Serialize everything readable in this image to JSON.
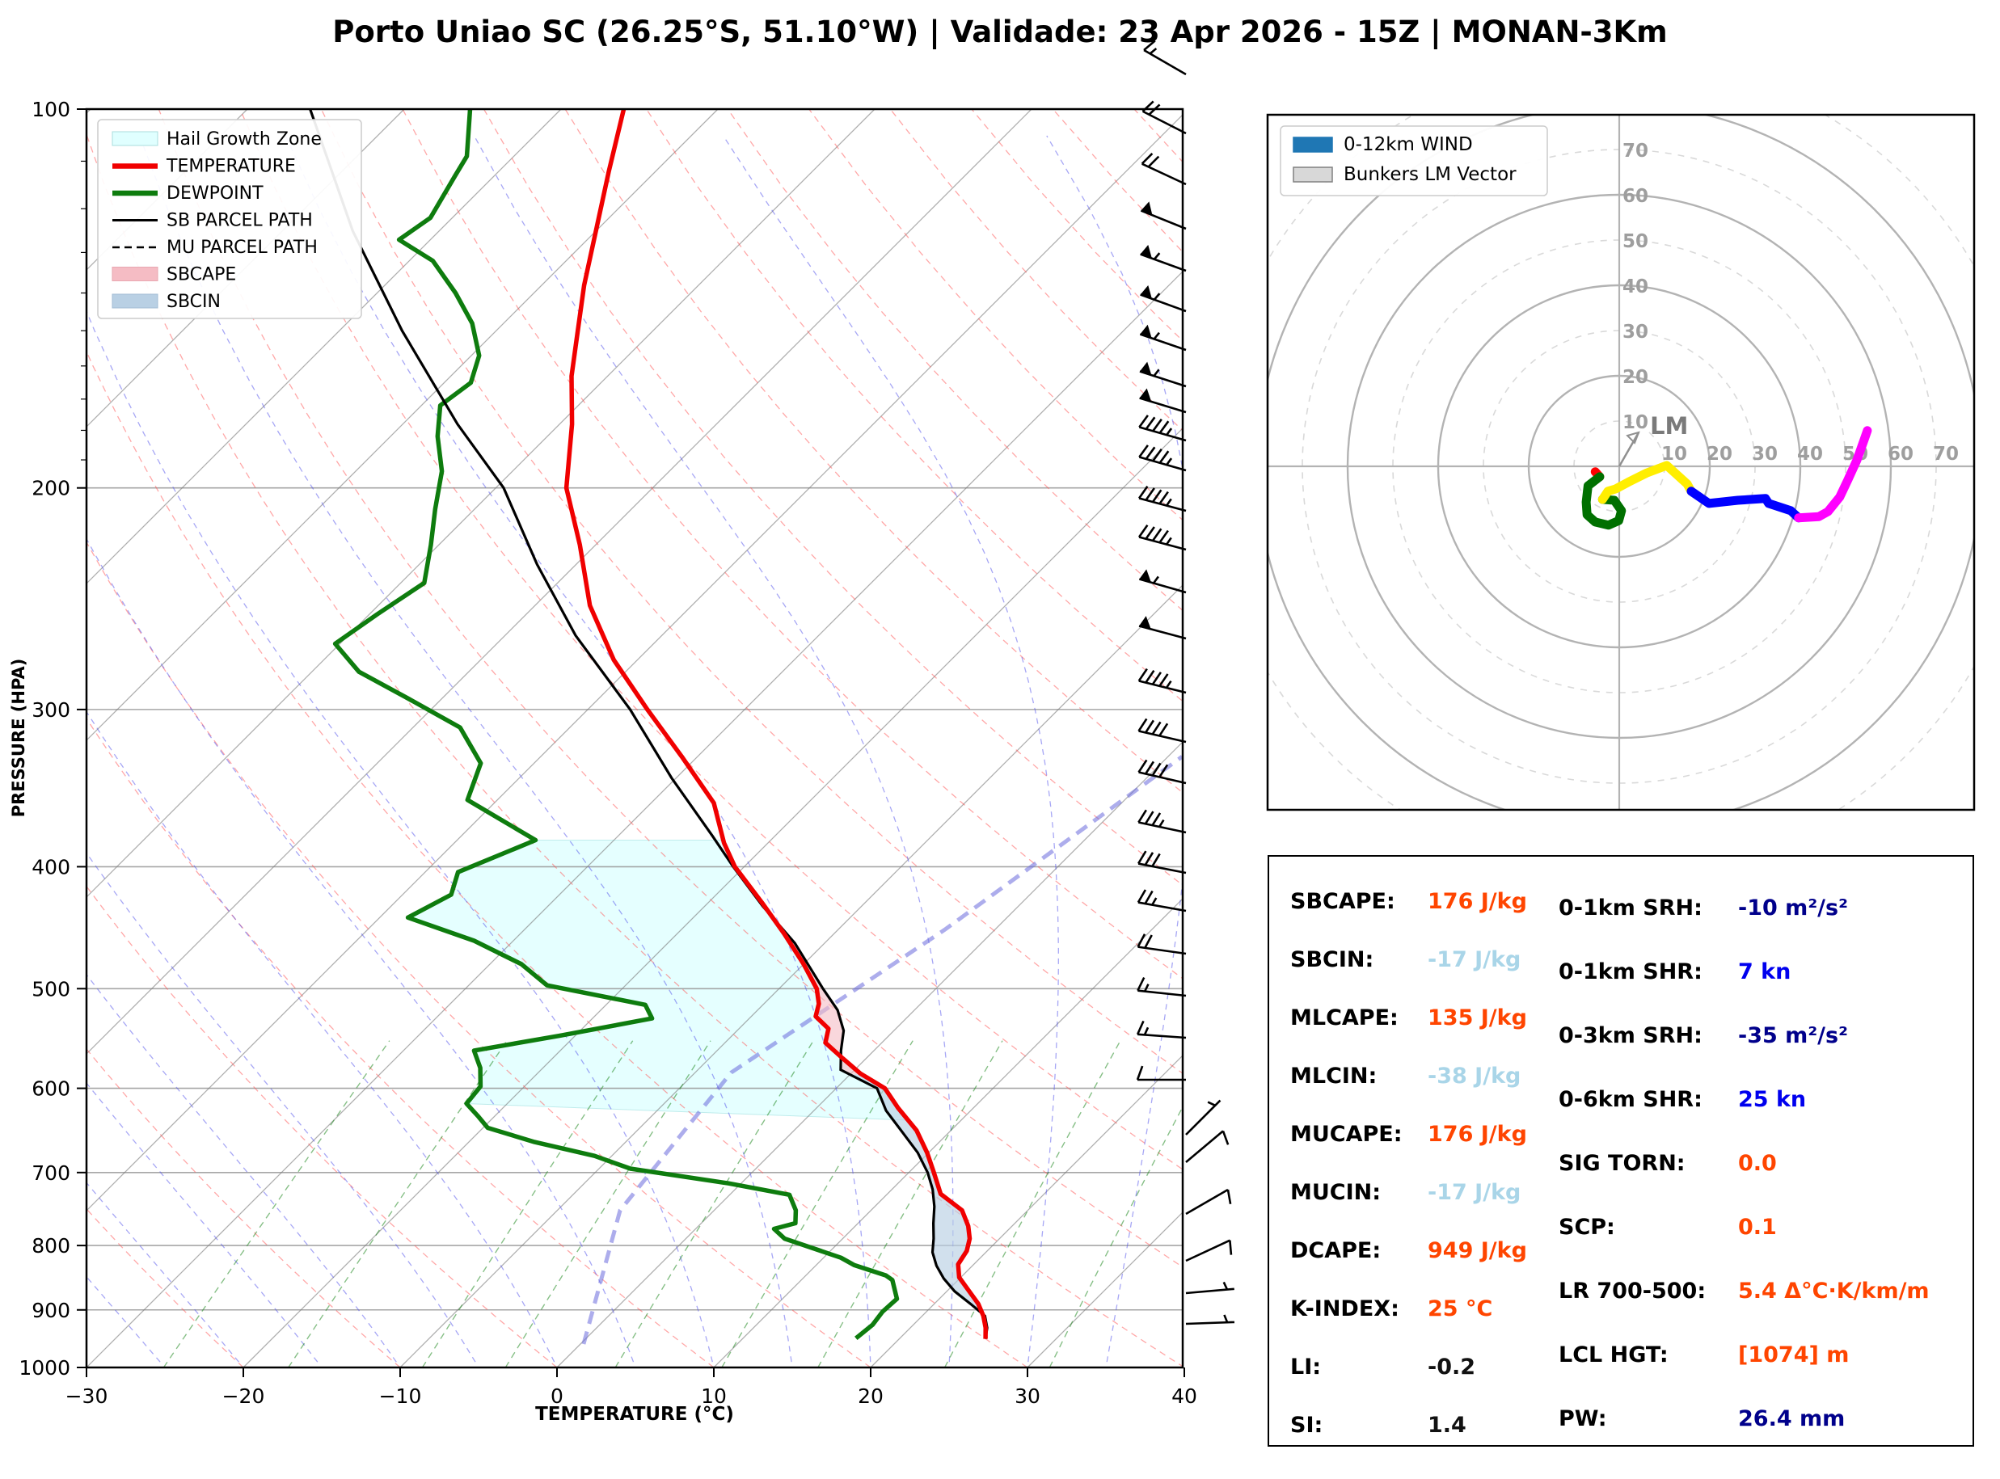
{
  "title": "Porto Uniao SC (26.25°S, 51.10°W) | Validade: 23 Apr 2026 - 15Z | MONAN-3Km",
  "skewt": {
    "xlabel": "TEMPERATURE (°C)",
    "ylabel": "PRESSURE (HPA)",
    "x_ticks": [
      -30,
      -20,
      -10,
      0,
      10,
      20,
      30,
      40
    ],
    "p_ticks": [
      100,
      200,
      300,
      400,
      500,
      600,
      700,
      800,
      900,
      1000
    ],
    "legend": [
      {
        "label": "Hail Growth Zone",
        "type": "patch",
        "color": "#e0ffff",
        "edge": "#aadddd"
      },
      {
        "label": "TEMPERATURE",
        "type": "line",
        "color": "#f00000"
      },
      {
        "label": "DEWPOINT",
        "type": "line",
        "color": "#0e7c0e"
      },
      {
        "label": "SB PARCEL PATH",
        "type": "line2",
        "color": "#000000"
      },
      {
        "label": "MU PARCEL PATH",
        "type": "dashed",
        "color": "#000000"
      },
      {
        "label": "SBCAPE",
        "type": "patch",
        "color": "#f5bcc4",
        "edge": "#e8a7b0"
      },
      {
        "label": "SBCIN",
        "type": "patch",
        "color": "#b9d0e4",
        "edge": "#a3bdd4"
      }
    ]
  },
  "hodograph": {
    "legend": [
      {
        "label": "0-12km WIND",
        "type": "patch",
        "color": "#1f77b4",
        "edge": "#1f77b4"
      },
      {
        "label": "Bunkers LM Vector",
        "type": "patch",
        "color": "#d8d8d8",
        "edge": "#808080"
      }
    ],
    "ring_labels": [
      10,
      20,
      30,
      40,
      50,
      60,
      70
    ],
    "lm_label": "LM"
  },
  "stats": {
    "left": [
      {
        "label": "SBCAPE:",
        "value": "176 J/kg",
        "color": "#ff4500"
      },
      {
        "label": "SBCIN:",
        "value": "-17 J/kg",
        "color": "#a9d5e8"
      },
      {
        "label": "MLCAPE:",
        "value": "135 J/kg",
        "color": "#ff4500"
      },
      {
        "label": "MLCIN:",
        "value": "-38 J/kg",
        "color": "#a9d5e8"
      },
      {
        "label": "MUCAPE:",
        "value": "176 J/kg",
        "color": "#ff4500"
      },
      {
        "label": "MUCIN:",
        "value": "-17 J/kg",
        "color": "#a9d5e8"
      },
      {
        "label": "DCAPE:",
        "value": "949 J/kg",
        "color": "#ff4500"
      },
      {
        "label": "K-INDEX:",
        "value": "25 °C",
        "color": "#ff4500"
      },
      {
        "label": "LI:",
        "value": "-0.2",
        "color": "#111111"
      },
      {
        "label": "SI:",
        "value": "1.4",
        "color": "#111111"
      }
    ],
    "right": [
      {
        "label": "0-1km SRH:",
        "value": "-10 m²/s²",
        "color": "#00008b"
      },
      {
        "label": "0-1km SHR:",
        "value": "7 kn",
        "color": "#0000ee"
      },
      {
        "label": "0-3km SRH:",
        "value": "-35 m²/s²",
        "color": "#00008b"
      },
      {
        "label": "0-6km SHR:",
        "value": "25 kn",
        "color": "#0000ee"
      },
      {
        "label": "SIG TORN:",
        "value": "0.0",
        "color": "#ff4500"
      },
      {
        "label": "SCP:",
        "value": "0.1",
        "color": "#ff4500"
      },
      {
        "label": "LR 700-500:",
        "value": "5.4 Δ°C·K/km/m",
        "color": "#ff4500"
      },
      {
        "label": "LCL HGT:",
        "value": "[1074] m",
        "color": "#ff4500"
      },
      {
        "label": "PW:",
        "value": "26.4 mm",
        "color": "#00008b"
      }
    ]
  },
  "chart_data": {
    "type": "skewt-sounding",
    "pressure_range_hpa": [
      100,
      1000
    ],
    "temperature_range_c": [
      -30,
      40
    ],
    "profiles": {
      "temperature": [
        [
          100,
          -76
        ],
        [
          112,
          -73
        ],
        [
          125,
          -70
        ],
        [
          138,
          -67.3
        ],
        [
          151,
          -64.6
        ],
        [
          163,
          -62.3
        ],
        [
          178,
          -59.2
        ],
        [
          200,
          -55.5
        ],
        [
          222,
          -51
        ],
        [
          248,
          -46.5
        ],
        [
          274,
          -41.5
        ],
        [
          300,
          -36.2
        ],
        [
          327,
          -31
        ],
        [
          356,
          -26
        ],
        [
          383,
          -22.8
        ],
        [
          400,
          -20.6
        ],
        [
          427,
          -16.6
        ],
        [
          452,
          -13.2
        ],
        [
          478,
          -10
        ],
        [
          500,
          -7.6
        ],
        [
          514,
          -6.5
        ],
        [
          526,
          -5.9
        ],
        [
          538,
          -4.3
        ],
        [
          552,
          -3.6
        ],
        [
          568,
          -1.5
        ],
        [
          584,
          0.6
        ],
        [
          600,
          3.1
        ],
        [
          622,
          5.2
        ],
        [
          648,
          7.8
        ],
        [
          675,
          9.9
        ],
        [
          700,
          11.6
        ],
        [
          728,
          13.4
        ],
        [
          750,
          15.8
        ],
        [
          772,
          17.2
        ],
        [
          790,
          18.1
        ],
        [
          808,
          18.7
        ],
        [
          828,
          19
        ],
        [
          848,
          19.9
        ],
        [
          868,
          21.3
        ],
        [
          890,
          22.8
        ],
        [
          910,
          23.9
        ],
        [
          930,
          24.8
        ],
        [
          949,
          25.5
        ]
      ],
      "dewpoint": [
        [
          100,
          -85.8
        ],
        [
          109,
          -83
        ],
        [
          113,
          -82.5
        ],
        [
          122,
          -81.4
        ],
        [
          127,
          -82
        ],
        [
          132,
          -78.5
        ],
        [
          140,
          -75
        ],
        [
          148,
          -72
        ],
        [
          157,
          -69.5
        ],
        [
          165,
          -68.3
        ],
        [
          172,
          -68.8
        ],
        [
          182,
          -67
        ],
        [
          194,
          -64.5
        ],
        [
          208,
          -62.5
        ],
        [
          222,
          -60.5
        ],
        [
          238,
          -58.5
        ],
        [
          252,
          -59.5
        ],
        [
          266,
          -60.3
        ],
        [
          280,
          -57
        ],
        [
          293,
          -52.5
        ],
        [
          310,
          -47
        ],
        [
          331,
          -43.4
        ],
        [
          354,
          -41.9
        ],
        [
          381,
          -35
        ],
        [
          404,
          -37.9
        ],
        [
          421,
          -36.9
        ],
        [
          439,
          -38.2
        ],
        [
          458,
          -32.5
        ],
        [
          478,
          -28
        ],
        [
          497,
          -25
        ],
        [
          515,
          -17.5
        ],
        [
          528,
          -16.2
        ],
        [
          545,
          -21
        ],
        [
          560,
          -25.5
        ],
        [
          578,
          -24
        ],
        [
          598,
          -22.8
        ],
        [
          617,
          -22.6
        ],
        [
          632,
          -21
        ],
        [
          645,
          -19.7
        ],
        [
          662,
          -15.8
        ],
        [
          679,
          -11.1
        ],
        [
          695,
          -8
        ],
        [
          714,
          -0.8
        ],
        [
          729,
          3.8
        ],
        [
          750,
          5.2
        ],
        [
          768,
          6
        ],
        [
          776,
          5
        ],
        [
          790,
          6.3
        ],
        [
          818,
          11.1
        ],
        [
          829,
          12.4
        ],
        [
          845,
          15.1
        ],
        [
          852,
          15.8
        ],
        [
          882,
          17.3
        ],
        [
          903,
          17.2
        ],
        [
          925,
          17.4
        ],
        [
          948,
          17.2
        ]
      ],
      "sb_parcel": [
        [
          100,
          -96
        ],
        [
          125,
          -85.5
        ],
        [
          150,
          -76
        ],
        [
          178,
          -66.5
        ],
        [
          200,
          -59.5
        ],
        [
          230,
          -52.5
        ],
        [
          262,
          -45.5
        ],
        [
          300,
          -37.3
        ],
        [
          340,
          -30.3
        ],
        [
          378,
          -24
        ],
        [
          400,
          -20.7
        ],
        [
          430,
          -16.3
        ],
        [
          460,
          -11.9
        ],
        [
          480,
          -9.5
        ],
        [
          500,
          -7.2
        ],
        [
          520,
          -4.9
        ],
        [
          540,
          -3.2
        ],
        [
          560,
          -2.1
        ],
        [
          580,
          -0.9
        ],
        [
          600,
          2.6
        ],
        [
          625,
          4.6
        ],
        [
          650,
          7
        ],
        [
          675,
          9.3
        ],
        [
          700,
          11.2
        ],
        [
          722,
          12.6
        ],
        [
          745,
          13.8
        ],
        [
          768,
          14.8
        ],
        [
          790,
          15.8
        ],
        [
          810,
          16.6
        ],
        [
          830,
          17.7
        ],
        [
          850,
          19
        ],
        [
          870,
          20.5
        ],
        [
          890,
          22.3
        ],
        [
          910,
          24
        ],
        [
          930,
          24.9
        ],
        [
          949,
          25.5
        ]
      ],
      "mu_parcel_same_as_sb": true
    },
    "special_line": [
      [
        958,
        0.2
      ],
      [
        750,
        -6.0
      ],
      [
        583,
        -7.7
      ],
      [
        449,
        -3.2
      ],
      [
        327,
        0.9
      ]
    ],
    "zones": {
      "hail_growth": {
        "p_top": 381,
        "p_bottom": 636
      },
      "sbcape": {
        "p_top": 393,
        "p_bottom": 585
      },
      "sbcin": {
        "p_top": 585,
        "p_bottom": 949
      }
    },
    "wind_barbs": [
      [
        92,
        15,
        300,
        0
      ],
      [
        165,
        20,
        297,
        0
      ],
      [
        228,
        20,
        295,
        0
      ],
      [
        283,
        50,
        292,
        0
      ],
      [
        335,
        55,
        290,
        0
      ],
      [
        385,
        55,
        290,
        0
      ],
      [
        433,
        55,
        289,
        0
      ],
      [
        478,
        55,
        288,
        0
      ],
      [
        510,
        50,
        287,
        0
      ],
      [
        545,
        45,
        286,
        0
      ],
      [
        582,
        45,
        286,
        0
      ],
      [
        632,
        45,
        285,
        0
      ],
      [
        680,
        45,
        285,
        0
      ],
      [
        733,
        55,
        286,
        0
      ],
      [
        790,
        50,
        285,
        0
      ],
      [
        857,
        45,
        284,
        0
      ],
      [
        918,
        40,
        283,
        0
      ],
      [
        969,
        40,
        283,
        0
      ],
      [
        1030,
        35,
        282,
        0
      ],
      [
        1080,
        30,
        281,
        0
      ],
      [
        1127,
        25,
        280,
        0
      ],
      [
        1180,
        20,
        278,
        0
      ],
      [
        1232,
        15,
        276,
        0
      ],
      [
        1284,
        15,
        274,
        0
      ],
      [
        1336,
        10,
        270,
        0
      ],
      [
        1404,
        5,
        45,
        1
      ],
      [
        1438,
        10,
        50,
        0
      ],
      [
        1502,
        10,
        60,
        0
      ],
      [
        1560,
        10,
        65,
        0
      ],
      [
        1600,
        5,
        85,
        1
      ],
      [
        1638,
        5,
        88,
        1
      ]
    ],
    "hodograph_trace": {
      "units": "kn",
      "ring_interval_kn": 10,
      "max_label_kn": 70,
      "segments": [
        {
          "name": "0-1km",
          "color": "#ff0000",
          "points": [
            [
              -5.3,
              -1.2
            ],
            [
              -4.3,
              -2.3
            ]
          ]
        },
        {
          "name": "1-3km",
          "color": "#007000",
          "points": [
            [
              -4.3,
              -2.3
            ],
            [
              -6.9,
              -4.3
            ],
            [
              -7.3,
              -7.9
            ],
            [
              -7.1,
              -10.7
            ],
            [
              -5.3,
              -12.3
            ],
            [
              -2.4,
              -13
            ],
            [
              -0.1,
              -12
            ],
            [
              0.5,
              -9.8
            ],
            [
              -1.1,
              -7.5
            ],
            [
              -3.7,
              -7.3
            ]
          ]
        },
        {
          "name": "3-6km",
          "color": "#ffee00",
          "points": [
            [
              -3.7,
              -7.3
            ],
            [
              -2.5,
              -5.5
            ],
            [
              -0.8,
              -5
            ],
            [
              2,
              -3.5
            ],
            [
              6,
              -1.5
            ],
            [
              10.5,
              0.2
            ],
            [
              15,
              -3.9
            ],
            [
              15.9,
              -5.5
            ]
          ]
        },
        {
          "name": "6-9km",
          "color": "#0000ff",
          "points": [
            [
              15.9,
              -5.5
            ],
            [
              19.8,
              -8.2
            ],
            [
              26.2,
              -7.5
            ],
            [
              32.3,
              -7.1
            ],
            [
              33,
              -8.2
            ],
            [
              37.9,
              -9.8
            ],
            [
              39.6,
              -11.4
            ]
          ]
        },
        {
          "name": "9-12km",
          "color": "#ff00ff",
          "points": [
            [
              39.6,
              -11.4
            ],
            [
              44.1,
              -11.1
            ],
            [
              46.1,
              -10
            ],
            [
              48.7,
              -6.8
            ],
            [
              50.5,
              -3
            ],
            [
              52.5,
              1.4
            ],
            [
              54.1,
              5.9
            ],
            [
              54.8,
              7.9
            ]
          ]
        }
      ],
      "lm_vector_kn": [
        4.3,
        7.5
      ]
    }
  }
}
